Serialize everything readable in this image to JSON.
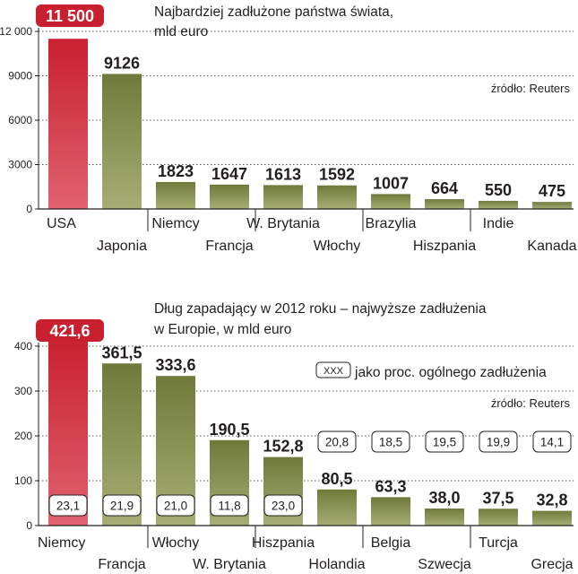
{
  "colors": {
    "highlight": "#c8202f",
    "highlight_light": "#e06270",
    "bar": "#6f7a3a",
    "bar_light": "#a7ae75",
    "axis": "#231f20"
  },
  "chart_data": [
    {
      "type": "bar",
      "title": "Najbardziej zadłużone państwa świata,",
      "subtitle": "mld euro",
      "source": "źródło: Reuters",
      "categories": [
        "USA",
        "Japonia",
        "Niemcy",
        "Francja",
        "W. Brytania",
        "Włochy",
        "Brazylia",
        "Hiszpania",
        "Indie",
        "Kanada"
      ],
      "values": [
        11500,
        9126,
        1823,
        1647,
        1613,
        1592,
        1007,
        664,
        550,
        475
      ],
      "value_labels": [
        "11 500",
        "9126",
        "1823",
        "1647",
        "1613",
        "1592",
        "1007",
        "664",
        "550",
        "475"
      ],
      "yticks": [
        0,
        3000,
        6000,
        9000,
        12000
      ],
      "ytick_labels": [
        "0",
        "3000",
        "6000",
        "9000",
        "12 000"
      ],
      "ylim": [
        0,
        12000
      ],
      "highlight_index": 0,
      "grid": "dotted-horizontal"
    },
    {
      "type": "bar",
      "title": "Dług zapadający w 2012 roku – najwyższe zadłużenia",
      "subtitle": "w Europie, w mld euro",
      "legend": "jako proc. ogólnego zadłużenia",
      "legend_sample": "XXX",
      "source": "źródło: Reuters",
      "categories": [
        "Niemcy",
        "Francja",
        "Włochy",
        "W. Brytania",
        "Hiszpania",
        "Holandia",
        "Belgia",
        "Szwecja",
        "Turcja",
        "Grecja"
      ],
      "values": [
        421.6,
        361.5,
        333.6,
        190.5,
        152.8,
        80.5,
        63.3,
        38.0,
        37.5,
        32.8
      ],
      "value_labels": [
        "421,6",
        "361,5",
        "333,6",
        "190,5",
        "152,8",
        "80,5",
        "63,3",
        "38,0",
        "37,5",
        "32,8"
      ],
      "percent_labels": [
        "23,1",
        "21,9",
        "21,0",
        "11,8",
        "23,0",
        "20,8",
        "18,5",
        "19,5",
        "19,9",
        "14,1"
      ],
      "yticks": [
        0,
        100,
        200,
        300,
        400
      ],
      "ytick_labels": [
        "0",
        "100",
        "200",
        "300",
        "400"
      ],
      "ylim": [
        0,
        400
      ],
      "highlight_index": 0,
      "grid": "dotted-horizontal"
    }
  ]
}
